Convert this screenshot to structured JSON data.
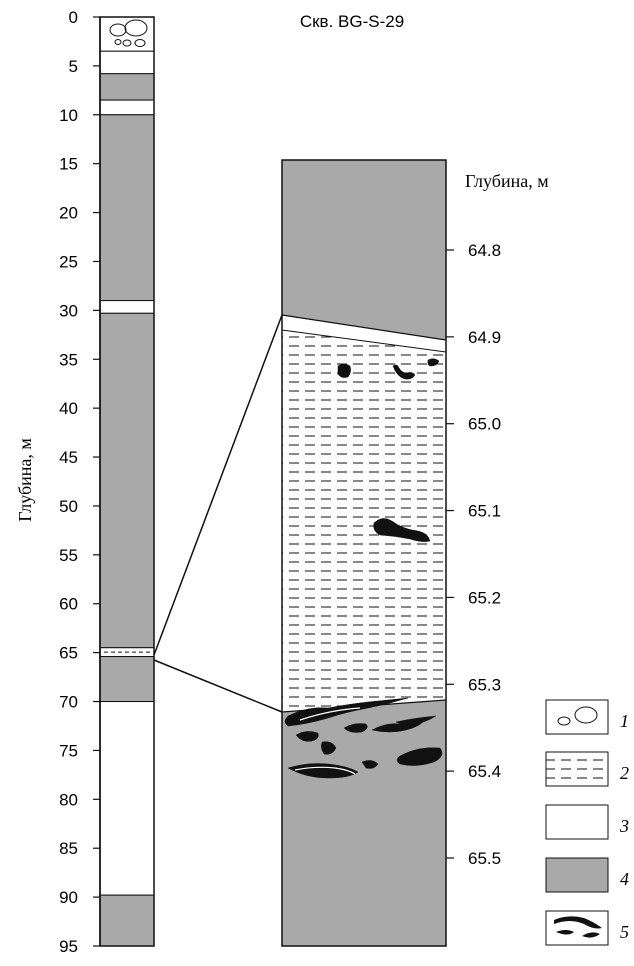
{
  "title": "Скв. BG-S-29",
  "left_column": {
    "axis_title": "Глубина, м",
    "ticks": [
      "0",
      "5",
      "10",
      "15",
      "20",
      "25",
      "30",
      "35",
      "40",
      "45",
      "50",
      "55",
      "60",
      "65",
      "70",
      "75",
      "80",
      "85",
      "90",
      "95"
    ],
    "layers": [
      {
        "from": 0,
        "to": 3.5,
        "type": "1"
      },
      {
        "from": 3.5,
        "to": 5.8,
        "type": "3"
      },
      {
        "from": 5.8,
        "to": 8.5,
        "type": "4"
      },
      {
        "from": 8.5,
        "to": 10,
        "type": "3"
      },
      {
        "from": 10,
        "to": 29,
        "type": "4"
      },
      {
        "from": 29,
        "to": 30.3,
        "type": "3"
      },
      {
        "from": 30.3,
        "to": 64.5,
        "type": "4"
      },
      {
        "from": 64.5,
        "to": 65.4,
        "type": "2"
      },
      {
        "from": 65.4,
        "to": 70,
        "type": "4"
      },
      {
        "from": 70,
        "to": 89.8,
        "type": "3"
      },
      {
        "from": 89.8,
        "to": 95,
        "type": "4"
      }
    ]
  },
  "right_column": {
    "axis_title": "Глубина, м",
    "ticks": [
      "64.8",
      "64.9",
      "65.0",
      "65.1",
      "65.2",
      "65.3",
      "65.4",
      "65.5"
    ]
  },
  "legend": [
    {
      "num": "1",
      "pattern": "boulders"
    },
    {
      "num": "2",
      "pattern": "dashes"
    },
    {
      "num": "3",
      "pattern": "white"
    },
    {
      "num": "4",
      "pattern": "gray"
    },
    {
      "num": "5",
      "pattern": "black-lenses"
    }
  ],
  "colors": {
    "gray": "#a9a9a9",
    "black": "#111111",
    "white": "#ffffff"
  }
}
